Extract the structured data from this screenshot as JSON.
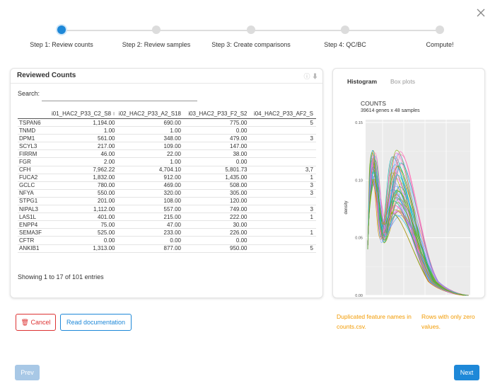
{
  "stepper": {
    "steps": [
      {
        "label": "Step 1: Review counts",
        "active": true
      },
      {
        "label": "Step 2: Review samples",
        "active": false
      },
      {
        "label": "Step 3: Create comparisons",
        "active": false
      },
      {
        "label": "Step 4: QC/BC",
        "active": false
      },
      {
        "label": "Compute!",
        "active": false
      }
    ]
  },
  "counts_panel": {
    "title": "Reviewed Counts",
    "search_label": "Search:",
    "search_value": "",
    "columns": [
      "",
      "i01_HAC2_P33_C2_S8",
      "i02_HAC2_P33_A2_S18",
      "i03_HAC2_P33_F2_S2",
      "i04_HAC2_P33_AF2_S"
    ],
    "rows": [
      [
        "TSPAN6",
        "1,194.00",
        "690.00",
        "775.00",
        "5"
      ],
      [
        "TNMD",
        "1.00",
        "1.00",
        "0.00",
        ""
      ],
      [
        "DPM1",
        "561.00",
        "348.00",
        "479.00",
        "3"
      ],
      [
        "SCYL3",
        "217.00",
        "109.00",
        "147.00",
        ""
      ],
      [
        "FIRRM",
        "46.00",
        "22.00",
        "38.00",
        ""
      ],
      [
        "FGR",
        "2.00",
        "1.00",
        "0.00",
        ""
      ],
      [
        "CFH",
        "7,962.22",
        "4,704.10",
        "5,801.73",
        "3,7"
      ],
      [
        "FUCA2",
        "1,832.00",
        "912.00",
        "1,435.00",
        "1"
      ],
      [
        "GCLC",
        "780.00",
        "469.00",
        "508.00",
        "3"
      ],
      [
        "NFYA",
        "550.00",
        "320.00",
        "305.00",
        "3"
      ],
      [
        "STPG1",
        "201.00",
        "108.00",
        "120.00",
        ""
      ],
      [
        "NIPAL3",
        "1,112.00",
        "557.00",
        "749.00",
        "3"
      ],
      [
        "LAS1L",
        "401.00",
        "215.00",
        "222.00",
        "1"
      ],
      [
        "ENPP4",
        "75.00",
        "47.00",
        "30.00",
        ""
      ],
      [
        "SEMA3F",
        "525.00",
        "233.00",
        "226.00",
        "1"
      ],
      [
        "CFTR",
        "0.00",
        "0.00",
        "0.00",
        ""
      ],
      [
        "ANKIB1",
        "1,313.00",
        "877.00",
        "950.00",
        "5"
      ]
    ],
    "footer": "Showing 1 to 17 of 101 entries"
  },
  "plot_panel": {
    "tabs": [
      "Histogram",
      "Box plots"
    ],
    "active_tab": "Histogram",
    "title": "COUNTS",
    "subtitle": "39614 genes x 48 samples",
    "y_label": "density",
    "y_ticks": [
      "0.15",
      "0.10",
      "0.05",
      "0.00"
    ]
  },
  "chart_data": {
    "type": "line",
    "ylabel": "density",
    "ylim": [
      0,
      0.15
    ],
    "series_count": 48,
    "grid": true
  },
  "warnings": {
    "duplicated": "Duplicated feature names in counts.csv.",
    "zero_rows": "Rows with only zero values."
  },
  "buttons": {
    "cancel": "Cancel",
    "docs": "Read documentation",
    "prev": "Prev",
    "next": "Next"
  },
  "colors": {
    "accent": "#1e88d8",
    "danger": "#dd3333",
    "warning": "#f29a00"
  }
}
